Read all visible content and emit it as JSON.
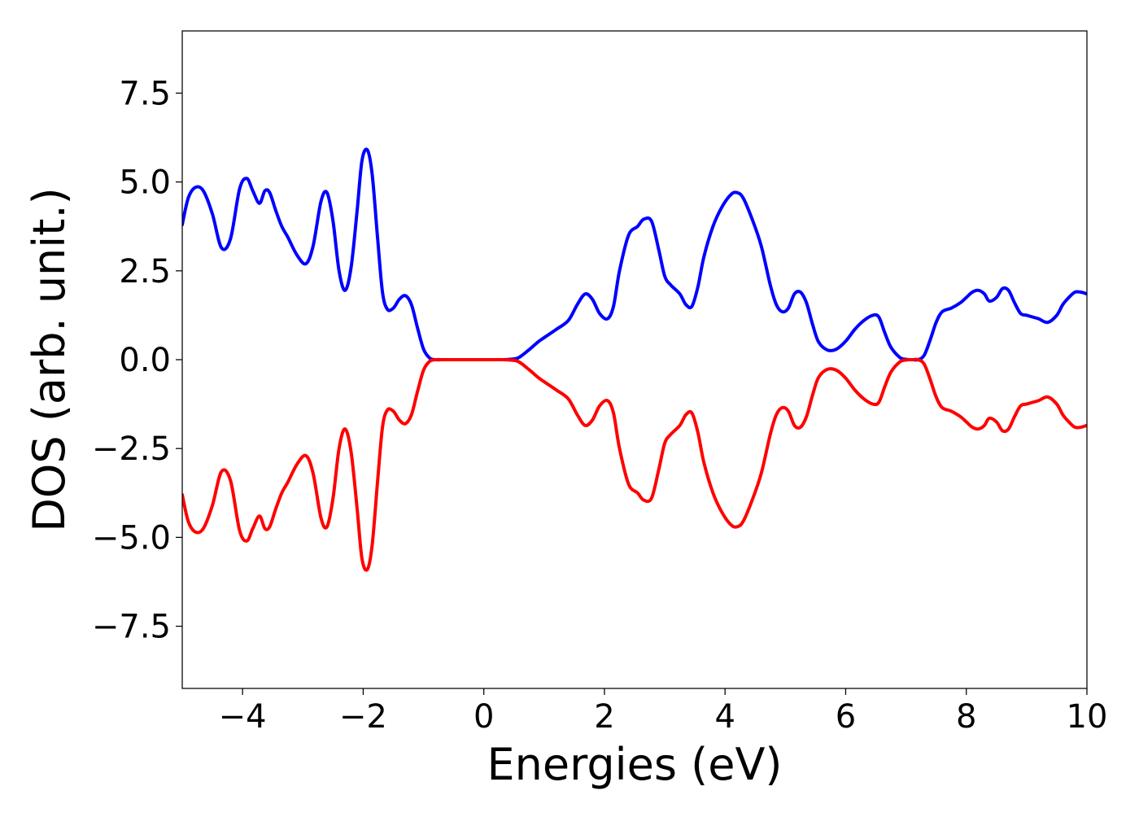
{
  "chart_data": {
    "type": "line",
    "title": "",
    "xlabel": "Energies (eV)",
    "ylabel": "DOS (arb. unit.)",
    "xlim": [
      -5,
      10
    ],
    "ylim": [
      -9.25,
      9.25
    ],
    "grid": false,
    "legend": "none",
    "x_ticks": [
      {
        "value": -4,
        "label": "−4"
      },
      {
        "value": -2,
        "label": "−2"
      },
      {
        "value": 0,
        "label": "0"
      },
      {
        "value": 2,
        "label": "2"
      },
      {
        "value": 4,
        "label": "4"
      },
      {
        "value": 6,
        "label": "6"
      },
      {
        "value": 8,
        "label": "8"
      },
      {
        "value": 10,
        "label": "10"
      }
    ],
    "y_ticks": [
      {
        "value": 7.5,
        "label": "7.5"
      },
      {
        "value": 5.0,
        "label": "5.0"
      },
      {
        "value": 2.5,
        "label": "2.5"
      },
      {
        "value": 0.0,
        "label": "0.0"
      },
      {
        "value": -2.5,
        "label": "−2.5"
      },
      {
        "value": -5.0,
        "label": "−5.0"
      },
      {
        "value": -7.5,
        "label": "−7.5"
      }
    ],
    "series": [
      {
        "color": "#0000ff",
        "x": [
          -5.0,
          -4.9,
          -4.78,
          -4.65,
          -4.5,
          -4.35,
          -4.2,
          -4.05,
          -3.93,
          -3.83,
          -3.72,
          -3.63,
          -3.55,
          -3.45,
          -3.35,
          -3.25,
          -3.1,
          -2.95,
          -2.83,
          -2.7,
          -2.6,
          -2.5,
          -2.4,
          -2.3,
          -2.2,
          -2.1,
          -2.02,
          -1.93,
          -1.85,
          -1.76,
          -1.68,
          -1.6,
          -1.5,
          -1.4,
          -1.3,
          -1.2,
          -1.1,
          -1.0,
          -0.9,
          -0.8,
          -0.7,
          -0.6,
          -0.5,
          -0.3,
          0.0,
          0.3,
          0.5,
          0.6,
          0.75,
          0.9,
          1.0,
          1.2,
          1.4,
          1.55,
          1.68,
          1.8,
          1.92,
          2.05,
          2.15,
          2.25,
          2.4,
          2.55,
          2.65,
          2.78,
          2.9,
          3.0,
          3.1,
          3.25,
          3.35,
          3.45,
          3.55,
          3.65,
          3.8,
          3.95,
          4.1,
          4.2,
          4.3,
          4.45,
          4.6,
          4.75,
          4.85,
          4.95,
          5.05,
          5.15,
          5.25,
          5.35,
          5.45,
          5.55,
          5.7,
          5.85,
          6.0,
          6.15,
          6.3,
          6.45,
          6.55,
          6.65,
          6.75,
          6.9,
          7.0,
          7.1,
          7.2,
          7.3,
          7.4,
          7.5,
          7.6,
          7.75,
          7.9,
          8.0,
          8.1,
          8.2,
          8.3,
          8.38,
          8.5,
          8.6,
          8.7,
          8.8,
          8.9,
          9.0,
          9.1,
          9.2,
          9.35,
          9.5,
          9.6,
          9.7,
          9.8,
          9.9,
          10.0
        ],
        "y": [
          3.8,
          4.55,
          4.85,
          4.75,
          4.1,
          3.15,
          3.4,
          4.8,
          5.1,
          4.75,
          4.4,
          4.75,
          4.7,
          4.2,
          3.75,
          3.45,
          2.95,
          2.7,
          3.2,
          4.45,
          4.7,
          3.9,
          2.5,
          1.95,
          2.6,
          4.2,
          5.6,
          5.9,
          5.2,
          3.4,
          1.9,
          1.42,
          1.45,
          1.7,
          1.8,
          1.55,
          0.9,
          0.3,
          0.05,
          0.0,
          0.0,
          0.0,
          0.0,
          0.0,
          0.0,
          0.0,
          0.02,
          0.08,
          0.28,
          0.5,
          0.62,
          0.85,
          1.1,
          1.55,
          1.85,
          1.7,
          1.3,
          1.15,
          1.5,
          2.5,
          3.5,
          3.75,
          3.95,
          3.9,
          3.1,
          2.35,
          2.1,
          1.85,
          1.55,
          1.5,
          2.05,
          2.9,
          3.75,
          4.3,
          4.65,
          4.7,
          4.55,
          3.95,
          3.2,
          2.1,
          1.55,
          1.35,
          1.45,
          1.85,
          1.9,
          1.6,
          1.0,
          0.5,
          0.27,
          0.3,
          0.52,
          0.85,
          1.1,
          1.25,
          1.2,
          0.75,
          0.35,
          0.06,
          0.01,
          0.0,
          0.0,
          0.12,
          0.55,
          1.05,
          1.35,
          1.45,
          1.6,
          1.75,
          1.9,
          1.95,
          1.85,
          1.65,
          1.75,
          2.0,
          1.95,
          1.6,
          1.3,
          1.25,
          1.2,
          1.15,
          1.05,
          1.25,
          1.55,
          1.75,
          1.9,
          1.9,
          1.85
        ]
      },
      {
        "color": "#ff0000",
        "x": [
          -5.0,
          -4.9,
          -4.78,
          -4.65,
          -4.5,
          -4.35,
          -4.2,
          -4.05,
          -3.93,
          -3.83,
          -3.72,
          -3.63,
          -3.55,
          -3.45,
          -3.35,
          -3.25,
          -3.1,
          -2.95,
          -2.83,
          -2.7,
          -2.6,
          -2.5,
          -2.4,
          -2.3,
          -2.2,
          -2.1,
          -2.02,
          -1.93,
          -1.85,
          -1.76,
          -1.68,
          -1.6,
          -1.5,
          -1.4,
          -1.3,
          -1.2,
          -1.1,
          -1.0,
          -0.9,
          -0.8,
          -0.7,
          -0.6,
          -0.5,
          -0.3,
          0.0,
          0.3,
          0.5,
          0.6,
          0.75,
          0.9,
          1.0,
          1.2,
          1.4,
          1.55,
          1.68,
          1.8,
          1.92,
          2.05,
          2.15,
          2.25,
          2.4,
          2.55,
          2.65,
          2.78,
          2.9,
          3.0,
          3.1,
          3.25,
          3.35,
          3.45,
          3.55,
          3.65,
          3.8,
          3.95,
          4.1,
          4.2,
          4.3,
          4.45,
          4.6,
          4.75,
          4.85,
          4.95,
          5.05,
          5.15,
          5.25,
          5.35,
          5.45,
          5.55,
          5.7,
          5.85,
          6.0,
          6.15,
          6.3,
          6.45,
          6.55,
          6.65,
          6.75,
          6.9,
          7.0,
          7.1,
          7.2,
          7.3,
          7.4,
          7.5,
          7.6,
          7.75,
          7.9,
          8.0,
          8.1,
          8.2,
          8.3,
          8.38,
          8.5,
          8.6,
          8.7,
          8.8,
          8.9,
          9.0,
          9.1,
          9.2,
          9.35,
          9.5,
          9.6,
          9.7,
          9.8,
          9.9,
          10.0
        ],
        "y": [
          -3.8,
          -4.55,
          -4.85,
          -4.75,
          -4.1,
          -3.15,
          -3.4,
          -4.8,
          -5.1,
          -4.75,
          -4.4,
          -4.75,
          -4.7,
          -4.2,
          -3.75,
          -3.45,
          -2.95,
          -2.7,
          -3.2,
          -4.45,
          -4.7,
          -3.9,
          -2.5,
          -1.95,
          -2.6,
          -4.2,
          -5.6,
          -5.9,
          -5.2,
          -3.4,
          -1.9,
          -1.42,
          -1.45,
          -1.7,
          -1.8,
          -1.55,
          -0.9,
          -0.3,
          -0.05,
          0.0,
          0.0,
          0.0,
          0.0,
          0.0,
          0.0,
          0.0,
          -0.02,
          -0.08,
          -0.28,
          -0.5,
          -0.62,
          -0.85,
          -1.1,
          -1.55,
          -1.85,
          -1.7,
          -1.3,
          -1.15,
          -1.5,
          -2.5,
          -3.5,
          -3.75,
          -3.95,
          -3.9,
          -3.1,
          -2.35,
          -2.1,
          -1.85,
          -1.55,
          -1.5,
          -2.05,
          -2.9,
          -3.75,
          -4.3,
          -4.65,
          -4.7,
          -4.55,
          -3.95,
          -3.2,
          -2.1,
          -1.55,
          -1.35,
          -1.45,
          -1.85,
          -1.9,
          -1.6,
          -1.0,
          -0.5,
          -0.27,
          -0.3,
          -0.52,
          -0.85,
          -1.1,
          -1.25,
          -1.2,
          -0.75,
          -0.35,
          -0.06,
          -0.01,
          0.0,
          0.0,
          -0.12,
          -0.55,
          -1.05,
          -1.35,
          -1.45,
          -1.6,
          -1.75,
          -1.9,
          -1.95,
          -1.85,
          -1.65,
          -1.75,
          -2.0,
          -1.95,
          -1.6,
          -1.3,
          -1.25,
          -1.2,
          -1.15,
          -1.05,
          -1.25,
          -1.55,
          -1.75,
          -1.9,
          -1.9,
          -1.85
        ]
      }
    ]
  }
}
